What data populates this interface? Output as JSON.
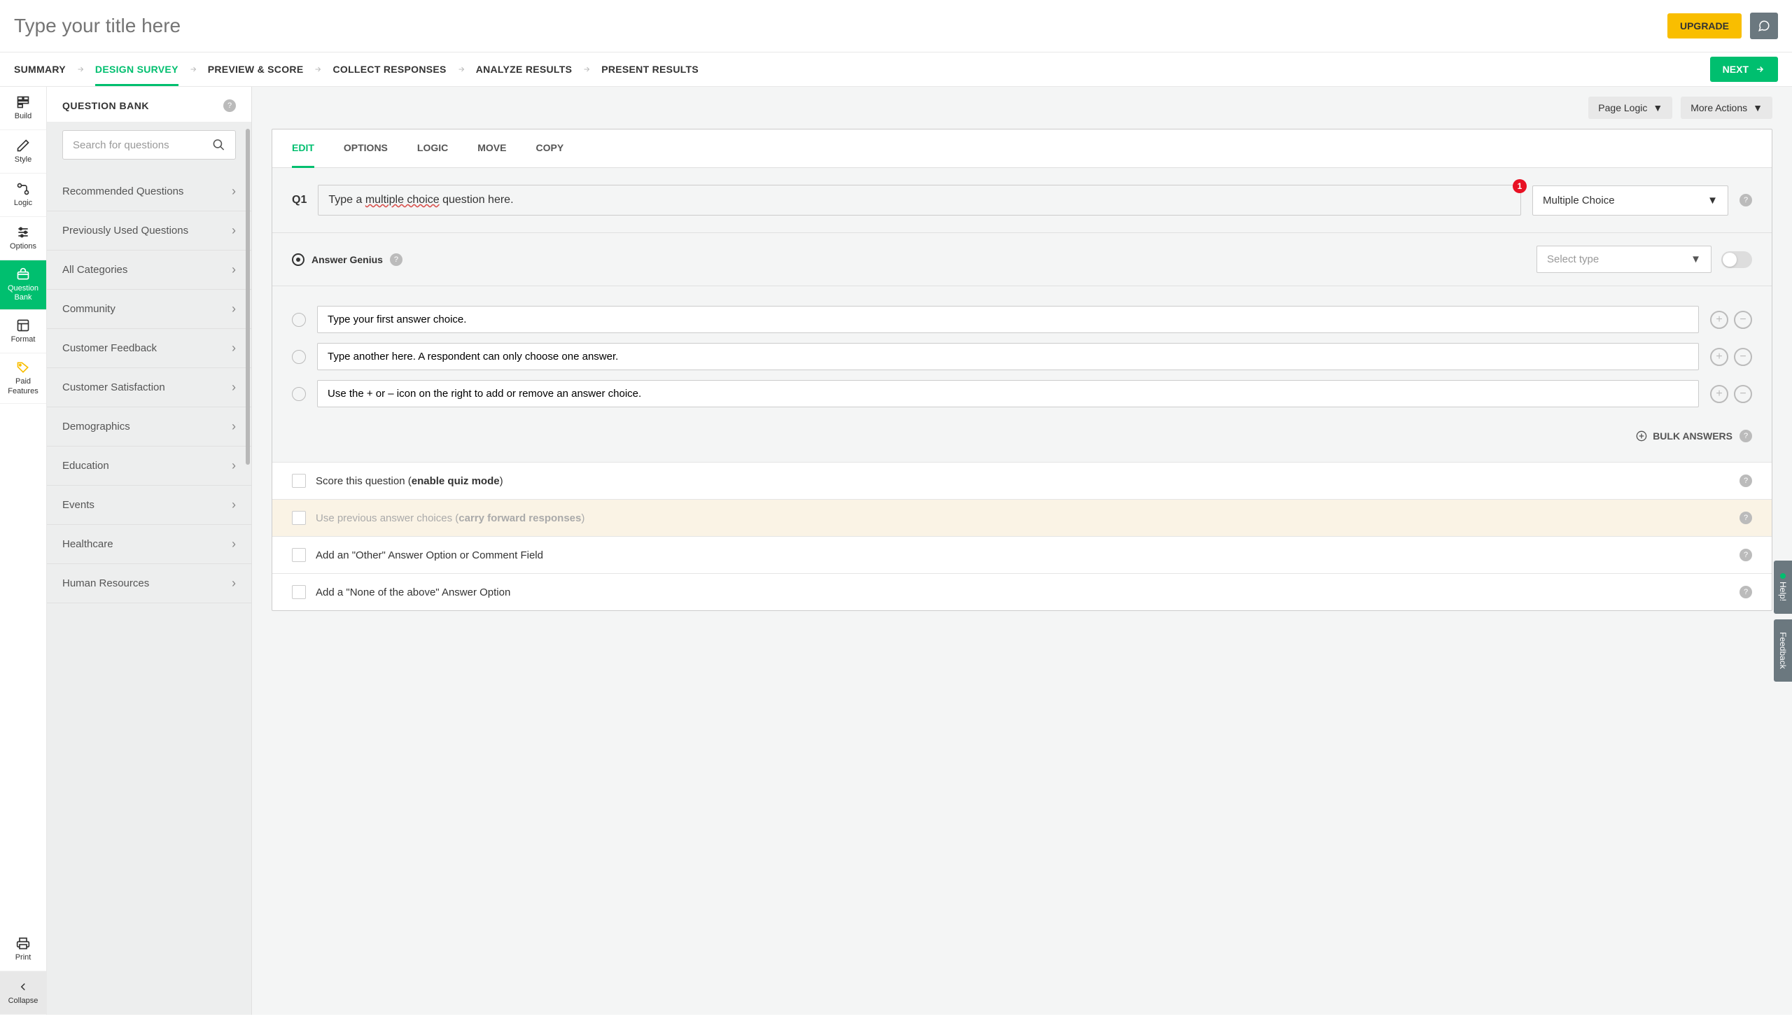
{
  "header": {
    "title_placeholder": "Type your title here",
    "upgrade_label": "UPGRADE"
  },
  "nav": {
    "tabs": [
      "SUMMARY",
      "DESIGN SURVEY",
      "PREVIEW & SCORE",
      "COLLECT RESPONSES",
      "ANALYZE RESULTS",
      "PRESENT RESULTS"
    ],
    "active_index": 1,
    "next_label": "NEXT"
  },
  "left_rail": {
    "items": [
      {
        "label": "Build",
        "icon": "build"
      },
      {
        "label": "Style",
        "icon": "pencil"
      },
      {
        "label": "Logic",
        "icon": "logic"
      },
      {
        "label": "Options",
        "icon": "sliders"
      },
      {
        "label": "Question Bank",
        "icon": "bank"
      },
      {
        "label": "Format",
        "icon": "format"
      },
      {
        "label": "Paid Features",
        "icon": "tag"
      }
    ],
    "active_index": 4,
    "print_label": "Print",
    "collapse_label": "Collapse"
  },
  "sidebar": {
    "title": "QUESTION BANK",
    "search_placeholder": "Search for questions",
    "categories": [
      "Recommended Questions",
      "Previously Used Questions",
      "All Categories",
      "Community",
      "Customer Feedback",
      "Customer Satisfaction",
      "Demographics",
      "Education",
      "Events",
      "Healthcare",
      "Human Resources"
    ]
  },
  "content": {
    "page_logic_label": "Page Logic",
    "more_actions_label": "More Actions",
    "editor_tabs": [
      "EDIT",
      "OPTIONS",
      "LOGIC",
      "MOVE",
      "COPY"
    ],
    "editor_active_index": 0,
    "question": {
      "label": "Q1",
      "text_before": "Type a ",
      "text_underlined": "multiple choice",
      "text_after": " question here.",
      "badge": "1",
      "type_label": "Multiple Choice"
    },
    "genius": {
      "label": "Answer Genius",
      "select_placeholder": "Select type"
    },
    "answers": [
      "Type your first answer choice.",
      "Type another here. A respondent can only choose one answer.",
      "Use the + or – icon on the right to add or remove an answer choice."
    ],
    "bulk_label": "BULK ANSWERS",
    "option_rows": [
      {
        "text_before": "Score this question (",
        "text_bold": "enable quiz mode",
        "text_after": ")",
        "disabled": false
      },
      {
        "text_before": "Use previous answer choices (",
        "text_bold": "carry forward responses",
        "text_after": ")",
        "disabled": true
      },
      {
        "text_before": "Add an \"Other\" Answer Option or Comment Field",
        "text_bold": "",
        "text_after": "",
        "disabled": false
      },
      {
        "text_before": "Add a \"None of the above\" Answer Option",
        "text_bold": "",
        "text_after": "",
        "disabled": false
      }
    ]
  },
  "feedback": {
    "help_label": "Help!",
    "feedback_label": "Feedback"
  },
  "colors": {
    "accent_green": "#00bf6f",
    "accent_yellow": "#f9be00",
    "badge_red": "#e81123",
    "gray_btn": "#6b787f"
  }
}
